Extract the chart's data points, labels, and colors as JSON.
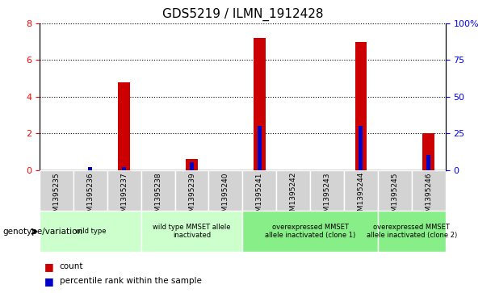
{
  "title": "GDS5219 / ILMN_1912428",
  "samples": [
    "GSM1395235",
    "GSM1395236",
    "GSM1395237",
    "GSM1395238",
    "GSM1395239",
    "GSM1395240",
    "GSM1395241",
    "GSM1395242",
    "GSM1395243",
    "GSM1395244",
    "GSM1395245",
    "GSM1395246"
  ],
  "counts": [
    0,
    0,
    4.8,
    0,
    0.6,
    0,
    7.2,
    0,
    0,
    7.0,
    0,
    2.0
  ],
  "percentiles": [
    0,
    2.0,
    2.0,
    0,
    5.0,
    0,
    30.0,
    0,
    0,
    30.0,
    0,
    10.0
  ],
  "ylim_left": [
    0,
    8
  ],
  "ylim_right": [
    0,
    100
  ],
  "yticks_left": [
    0,
    2,
    4,
    6,
    8
  ],
  "yticks_right": [
    0,
    25,
    50,
    75,
    100
  ],
  "ytick_labels_right": [
    "0",
    "25",
    "50",
    "75",
    "100%"
  ],
  "bar_color": "#cc0000",
  "percentile_color": "#0000cc",
  "grid_color": "#000000",
  "bg_color": "#ffffff",
  "tick_bg_color": "#d3d3d3",
  "groups": [
    {
      "label": "wild type",
      "start": 0,
      "end": 2,
      "color": "#ccffcc"
    },
    {
      "label": "wild type MMSET allele\ninactivated",
      "start": 3,
      "end": 5,
      "color": "#ccffcc"
    },
    {
      "label": "overexpressed MMSET\nallele inactivated (clone 1)",
      "start": 6,
      "end": 9,
      "color": "#88ee88"
    },
    {
      "label": "overexpressed MMSET\nallele inactivated (clone 2)",
      "start": 10,
      "end": 11,
      "color": "#88ee88"
    }
  ],
  "genotype_label": "genotype/variation",
  "legend_count": "count",
  "legend_percentile": "percentile rank within the sample",
  "title_fontsize": 11,
  "axis_fontsize": 7,
  "label_fontsize": 7.5
}
